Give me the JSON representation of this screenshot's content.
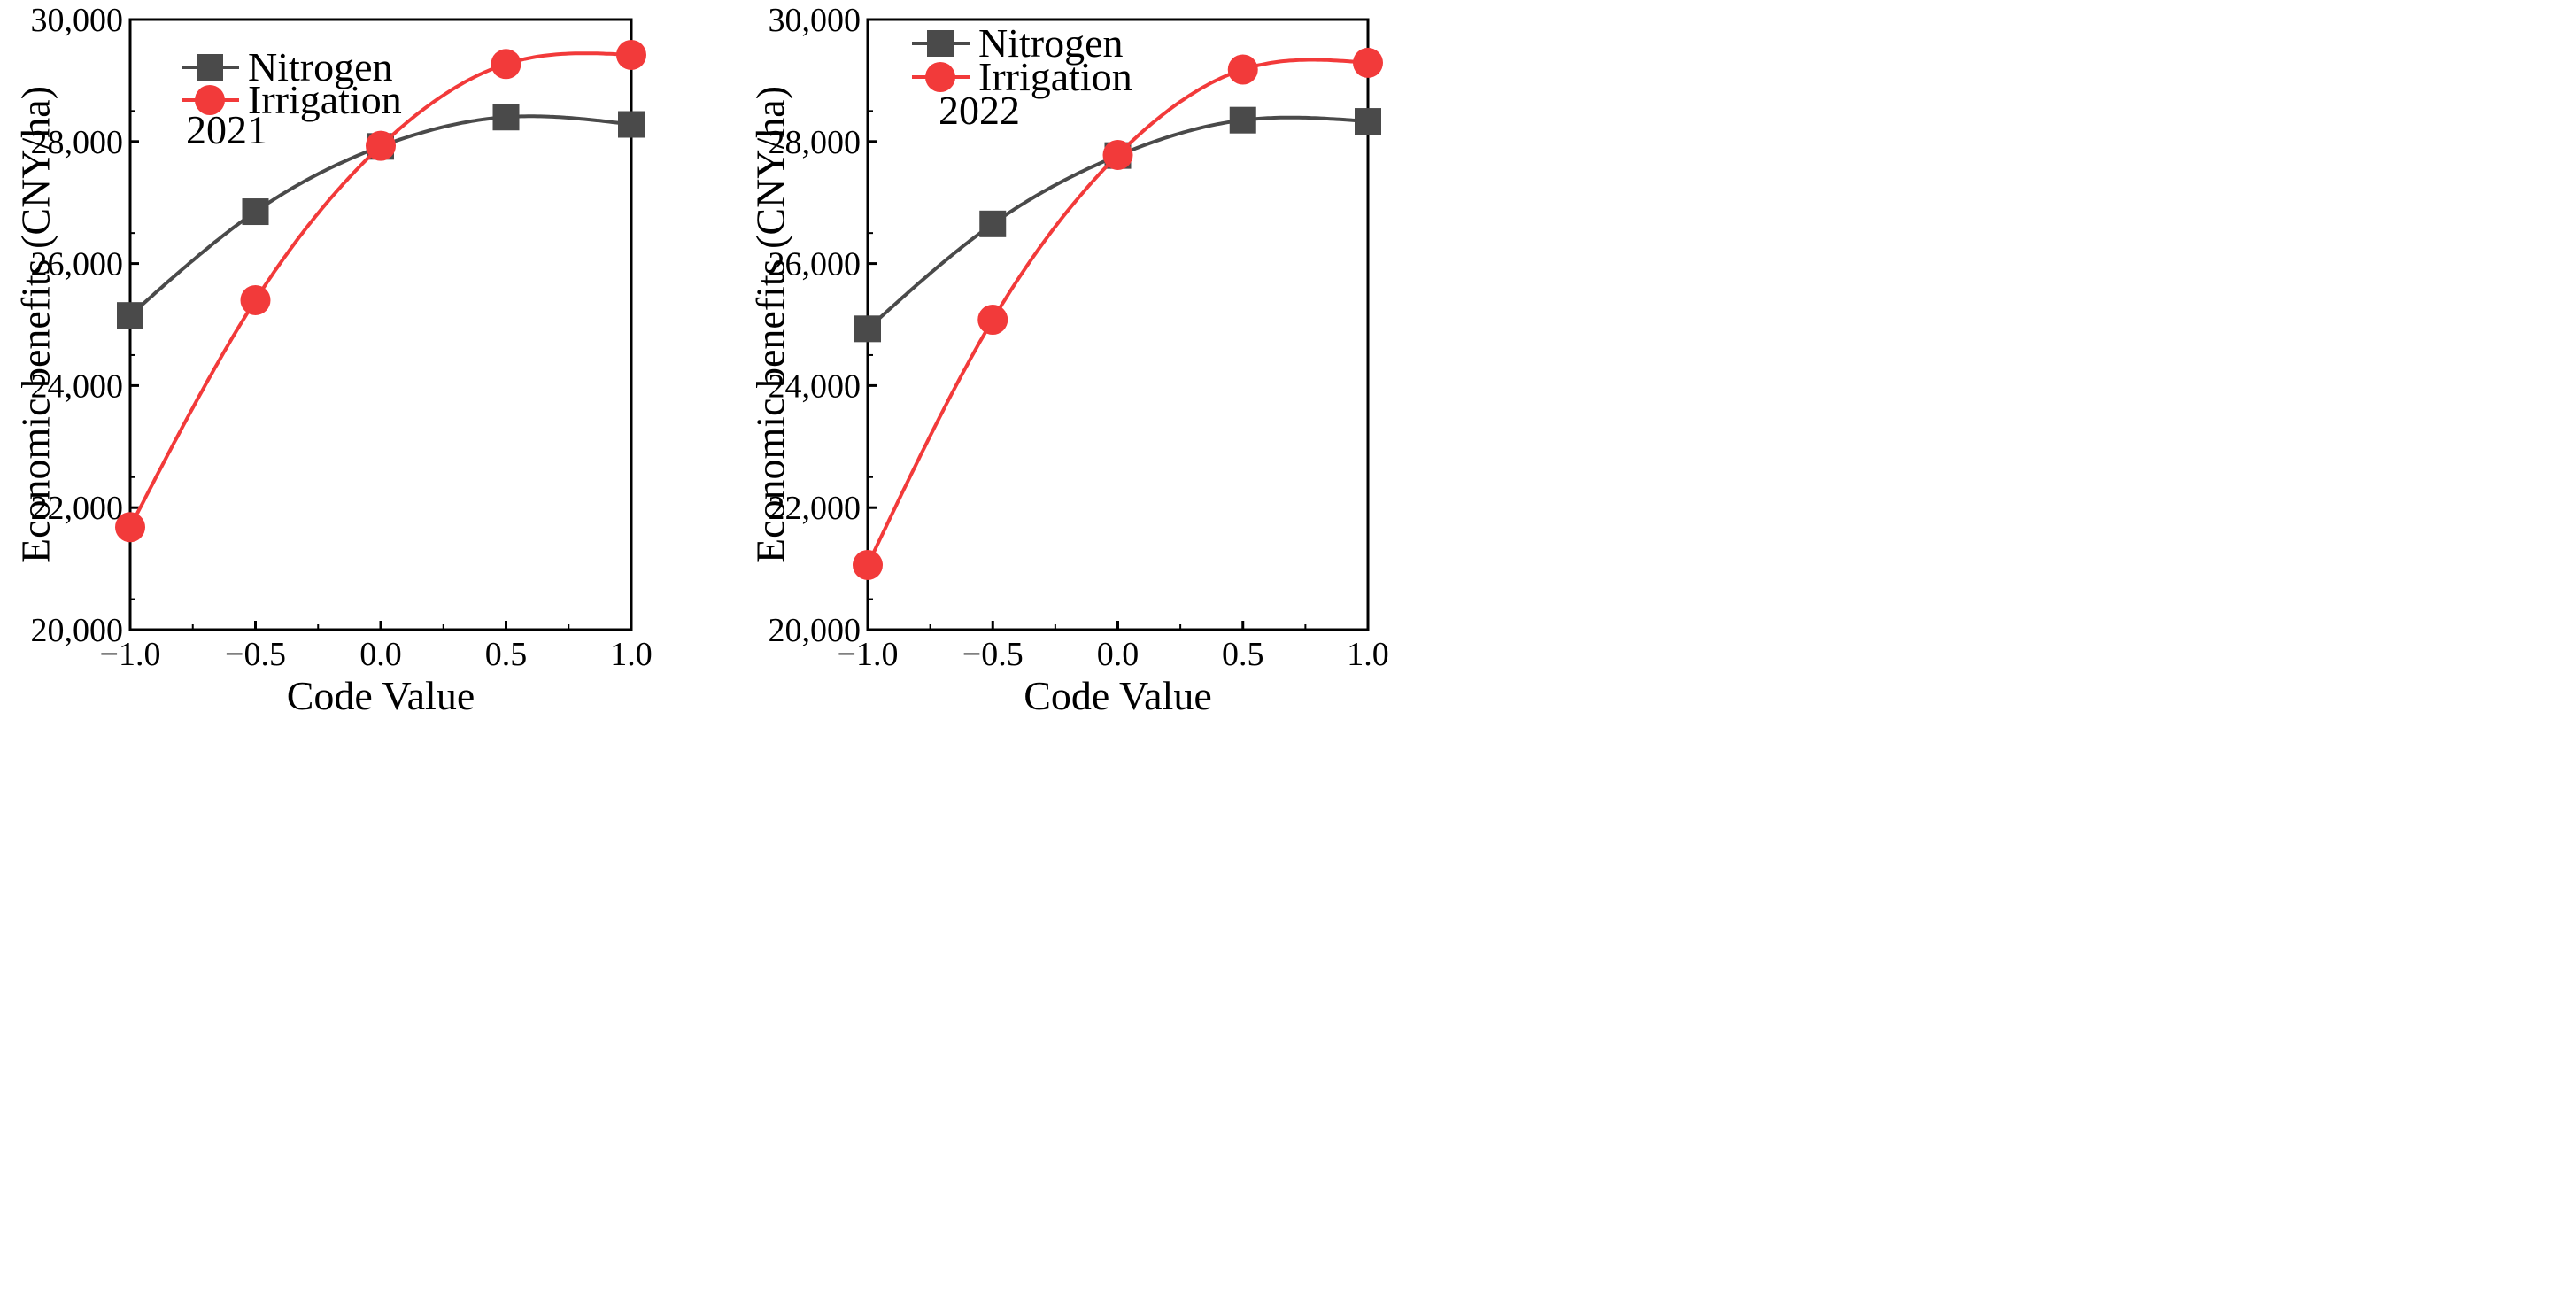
{
  "colors": {
    "nitrogen": "#4a4a4a",
    "irrigation": "#f23a3a",
    "axis": "#000000"
  },
  "chart_data": [
    {
      "type": "line",
      "annotation": "2021",
      "xlabel": "Code Value",
      "ylabel": "Economic benefits (CNY/ha)",
      "xlim": [
        -1.0,
        1.0
      ],
      "ylim": [
        20000,
        30000
      ],
      "xticks": [
        -1.0,
        -0.5,
        0.0,
        0.5,
        1.0
      ],
      "xtick_labels": [
        "−1.0",
        "−0.5",
        "0.0",
        "0.5",
        "1.0"
      ],
      "yticks": [
        20000,
        22000,
        24000,
        26000,
        28000,
        30000
      ],
      "ytick_labels": [
        "20,000",
        "22,000",
        "24,000",
        "26,000",
        "28,000",
        "30,000"
      ],
      "legend_position": "top-left",
      "x": [
        -1.0,
        -0.5,
        0.0,
        0.5,
        1.0
      ],
      "series": [
        {
          "name": "Nitrogen",
          "marker": "square",
          "color": "#4a4a4a",
          "values": [
            25150,
            26850,
            27920,
            28400,
            28280
          ]
        },
        {
          "name": "Irrigation",
          "marker": "circle",
          "color": "#f23a3a",
          "values": [
            21680,
            25400,
            27930,
            29270,
            29420
          ]
        }
      ]
    },
    {
      "type": "line",
      "annotation": "2022",
      "xlabel": "Code Value",
      "ylabel": "Economic benefits (CNY/ha)",
      "xlim": [
        -1.0,
        1.0
      ],
      "ylim": [
        20000,
        30000
      ],
      "xticks": [
        -1.0,
        -0.5,
        0.0,
        0.5,
        1.0
      ],
      "xtick_labels": [
        "−1.0",
        "−0.5",
        "0.0",
        "0.5",
        "1.0"
      ],
      "yticks": [
        20000,
        22000,
        24000,
        26000,
        28000,
        30000
      ],
      "ytick_labels": [
        "20,000",
        "22,000",
        "24,000",
        "26,000",
        "28,000",
        "30,000"
      ],
      "legend_position": "top-left",
      "x": [
        -1.0,
        -0.5,
        0.0,
        0.5,
        1.0
      ],
      "series": [
        {
          "name": "Nitrogen",
          "marker": "square",
          "color": "#4a4a4a",
          "values": [
            24930,
            26650,
            27770,
            28350,
            28330
          ]
        },
        {
          "name": "Irrigation",
          "marker": "circle",
          "color": "#f23a3a",
          "values": [
            21060,
            25080,
            27780,
            29180,
            29290
          ]
        }
      ]
    }
  ]
}
